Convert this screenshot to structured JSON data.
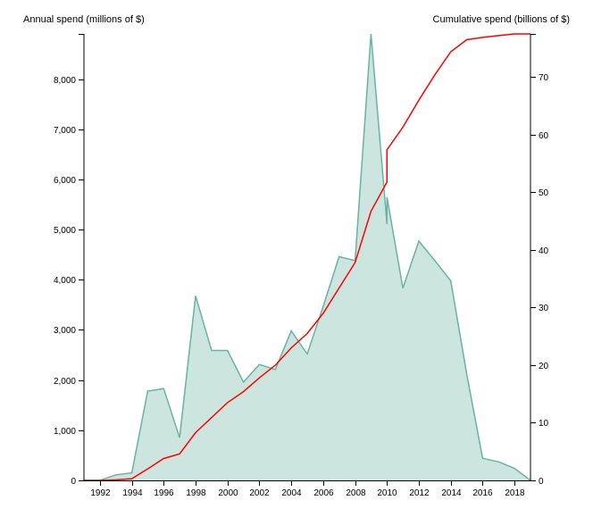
{
  "chart_data": {
    "type": "area",
    "title": "",
    "y_left_label": "Annual spend (millions of $)",
    "y_right_label": "Cumulative spend (billions of $)",
    "x_range": [
      1991,
      2019
    ],
    "y_left_range": [
      0,
      8900
    ],
    "y_right_range": [
      0,
      77.5
    ],
    "x_ticks": [
      "1992",
      "1994",
      "1996",
      "1998",
      "2000",
      "2002",
      "2004",
      "2006",
      "2008",
      "2010",
      "2012",
      "2014",
      "2016",
      "2018"
    ],
    "y_left_ticks": [
      "0",
      "1,000",
      "2,000",
      "3,000",
      "4,000",
      "5,000",
      "6,000",
      "7,000",
      "8,000"
    ],
    "y_right_ticks": [
      "0",
      "10",
      "20",
      "30",
      "40",
      "50",
      "60",
      "70"
    ],
    "series": [
      {
        "name": "Annual spend",
        "axis": "left",
        "style": "area",
        "color": "#69b3a2",
        "fill": "#cce5df",
        "points": [
          [
            1991,
            0
          ],
          [
            1992,
            0
          ],
          [
            1993,
            110
          ],
          [
            1994,
            150
          ],
          [
            1995,
            1780
          ],
          [
            1996,
            1830
          ],
          [
            1997,
            850
          ],
          [
            1998,
            3680
          ],
          [
            1999,
            2590
          ],
          [
            2000,
            2590
          ],
          [
            2001,
            1960
          ],
          [
            2002,
            2310
          ],
          [
            2003,
            2210
          ],
          [
            2004,
            2980
          ],
          [
            2005,
            2520
          ],
          [
            2006,
            3470
          ],
          [
            2007,
            4460
          ],
          [
            2008,
            4380
          ],
          [
            2009,
            8900
          ],
          [
            2010,
            5110
          ],
          [
            2010,
            5650
          ],
          [
            2011,
            3830
          ],
          [
            2012,
            4770
          ],
          [
            2013,
            4380
          ],
          [
            2014,
            3980
          ],
          [
            2015,
            2120
          ],
          [
            2016,
            440
          ],
          [
            2017,
            370
          ],
          [
            2018,
            240
          ],
          [
            2019,
            0
          ]
        ]
      },
      {
        "name": "Cumulative spend",
        "axis": "right",
        "style": "line",
        "color": "#ff0000",
        "points": [
          [
            1991,
            0
          ],
          [
            1992,
            0
          ],
          [
            1993,
            0.1
          ],
          [
            1994,
            0.3
          ],
          [
            1995,
            2.0
          ],
          [
            1996,
            3.8
          ],
          [
            1997,
            4.6
          ],
          [
            1998,
            8.3
          ],
          [
            1999,
            10.9
          ],
          [
            2000,
            13.5
          ],
          [
            2001,
            15.4
          ],
          [
            2002,
            17.8
          ],
          [
            2003,
            20.0
          ],
          [
            2004,
            23.0
          ],
          [
            2005,
            25.5
          ],
          [
            2006,
            29.0
          ],
          [
            2007,
            33.4
          ],
          [
            2008,
            37.8
          ],
          [
            2009,
            46.7
          ],
          [
            2010,
            51.8
          ],
          [
            2010,
            57.4
          ],
          [
            2011,
            61.3
          ],
          [
            2012,
            66.0
          ],
          [
            2013,
            70.4
          ],
          [
            2014,
            74.4
          ],
          [
            2015,
            76.5
          ],
          [
            2016,
            76.9
          ],
          [
            2017,
            77.2
          ],
          [
            2018,
            77.5
          ],
          [
            2019,
            77.5
          ]
        ]
      }
    ],
    "grid": false,
    "legend": "none"
  }
}
